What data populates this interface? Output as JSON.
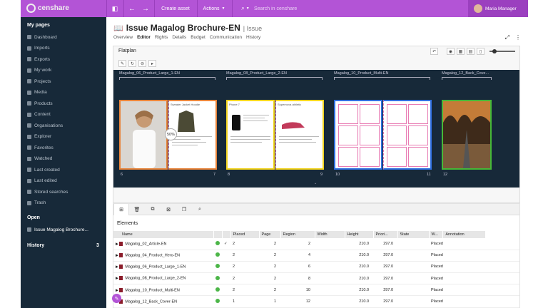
{
  "topbar": {
    "logo": "censhare",
    "create_label": "Create asset",
    "actions_label": "Actions",
    "search_placeholder": "Search in censhare",
    "user_name": "Maria Manager"
  },
  "sidebar": {
    "mypages_title": "My pages",
    "items": [
      "Dashboard",
      "Imports",
      "Exports",
      "My work",
      "Projects",
      "Media",
      "Products",
      "Content",
      "Organisations",
      "Explorer",
      "Favorites",
      "Watched",
      "Last created",
      "Last edited",
      "Stored searches",
      "Trash"
    ],
    "open_title": "Open",
    "open_item": "Issue Magalog Brochure...",
    "history_title": "History",
    "history_count": "3"
  },
  "header": {
    "title": "Issue Magalog Brochure-EN",
    "type": "Issue",
    "tabs": [
      "Overview",
      "Editor",
      "Rights",
      "Details",
      "Budget",
      "Communication",
      "History"
    ],
    "active_tab": "Editor"
  },
  "flatplan": {
    "title": "Flatplan",
    "zoom_badge": "50%",
    "spreads": [
      {
        "label": "Magalog_06_Product_Large_1-EN",
        "pages": [
          "6",
          "7"
        ]
      },
      {
        "label": "Magalog_08_Product_Large_2-EN",
        "pages": [
          "8",
          "9"
        ]
      },
      {
        "label": "Magalog_10_Product_Multi-EN",
        "pages": [
          "10",
          "11"
        ]
      },
      {
        "label": "Magalog_12_Back_Cove...",
        "pages": [
          "12"
        ]
      }
    ],
    "colors": {
      "spread1": "#e8843a",
      "spread2": "#f2d41f",
      "spread3": "#2f6fe0",
      "spread4": "#46b838",
      "page_grid": "#e87bb3"
    },
    "headline1": "Sweater Jacket Hoodie",
    "headline2": "Phone 7",
    "headline3": "Supernova athletic"
  },
  "elements": {
    "title": "Elements",
    "columns": [
      "Name",
      "",
      "",
      "Placed",
      "Page",
      "Region",
      "Width",
      "Height",
      "Priori...",
      "State",
      "W...",
      "Annotation"
    ],
    "rows": [
      {
        "name": "Magalog_02_Article-EN",
        "c": "2",
        "placed": "2",
        "page": "2",
        "width": "210.0",
        "height": "297.0",
        "state": "Placed"
      },
      {
        "name": "Magalog_04_Product_Hero-EN",
        "c": "2",
        "placed": "2",
        "page": "4",
        "width": "210.0",
        "height": "297.0",
        "state": "Placed"
      },
      {
        "name": "Magalog_06_Product_Large_1-EN",
        "c": "2",
        "placed": "2",
        "page": "6",
        "width": "210.0",
        "height": "297.0",
        "state": "Placed"
      },
      {
        "name": "Magalog_08_Product_Large_2-EN",
        "c": "2",
        "placed": "2",
        "page": "8",
        "width": "210.0",
        "height": "297.0",
        "state": "Placed"
      },
      {
        "name": "Magalog_10_Product_Multi-EN",
        "c": "2",
        "placed": "2",
        "page": "10",
        "width": "210.0",
        "height": "297.0",
        "state": "Placed"
      },
      {
        "name": "Magalog_12_Back_Cover-EN",
        "c": "1",
        "placed": "1",
        "page": "12",
        "width": "210.0",
        "height": "297.0",
        "state": "Placed"
      }
    ]
  }
}
